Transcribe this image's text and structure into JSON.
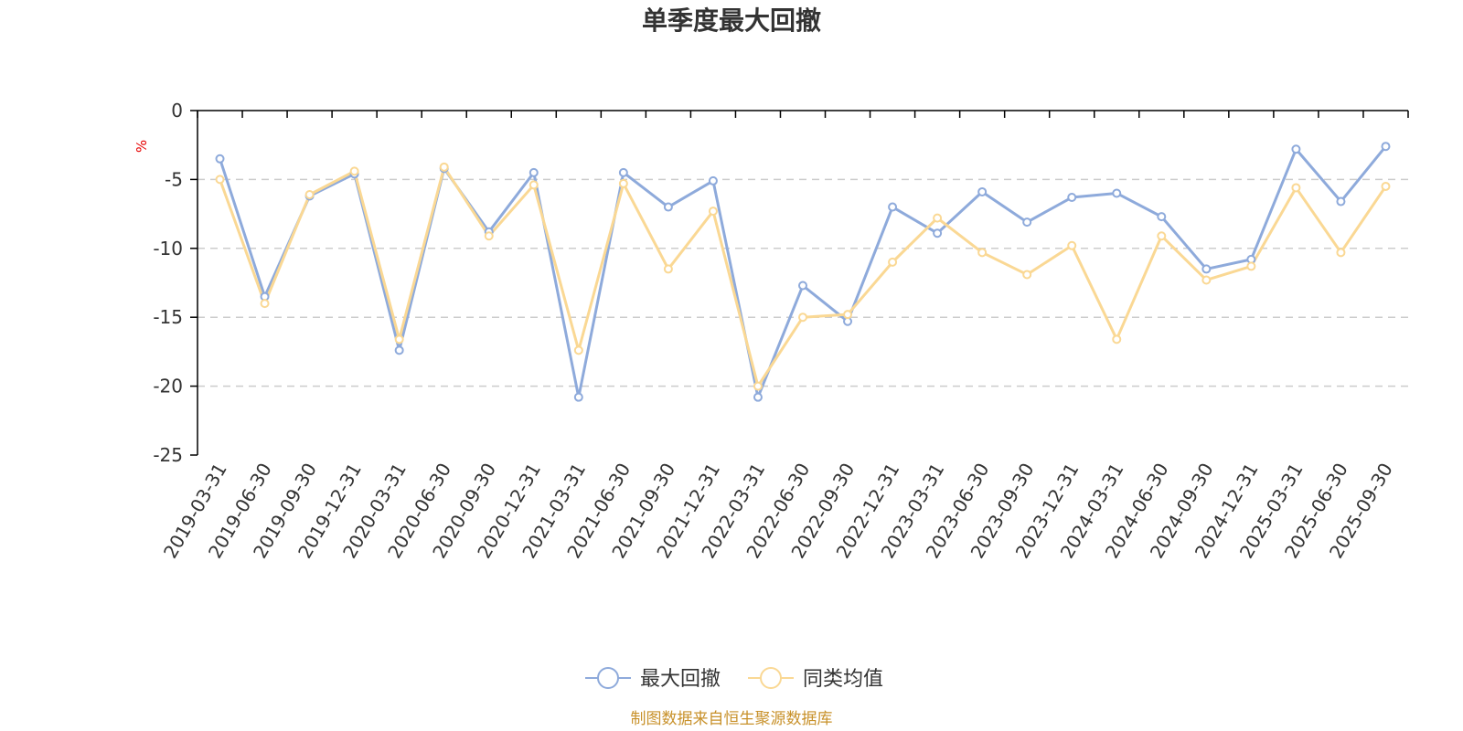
{
  "chart_data": {
    "type": "line",
    "title": "单季度最大回撤",
    "unit_label": "%",
    "footer": "制图数据来自恒生聚源数据库",
    "ylim": [
      -25,
      0
    ],
    "yticks": [
      "0",
      "-5",
      "-10",
      "-15",
      "-20",
      "-25"
    ],
    "ytick_values": [
      0,
      -5,
      -10,
      -15,
      -20,
      -25
    ],
    "grid": "horizontal-dashed",
    "legend_position": "bottom-center",
    "categories": [
      "2019-03-31",
      "2019-06-30",
      "2019-09-30",
      "2019-12-31",
      "2020-03-31",
      "2020-06-30",
      "2020-09-30",
      "2020-12-31",
      "2021-03-31",
      "2021-06-30",
      "2021-09-30",
      "2021-12-31",
      "2022-03-31",
      "2022-06-30",
      "2022-09-30",
      "2022-12-31",
      "2023-03-31",
      "2023-06-30",
      "2023-09-30",
      "2023-12-31",
      "2024-03-31",
      "2024-06-30",
      "2024-09-30",
      "2024-12-31",
      "2025-03-31",
      "2025-06-30",
      "2025-09-30"
    ],
    "series": [
      {
        "name": "最大回撤",
        "color": "#8eaadb",
        "values": [
          -3.5,
          -13.5,
          -6.2,
          -4.6,
          -17.4,
          -4.2,
          -8.8,
          -4.5,
          -20.8,
          -4.5,
          -7.0,
          -5.1,
          -20.8,
          -12.7,
          -15.3,
          -7.0,
          -8.9,
          -5.9,
          -8.1,
          -6.3,
          -6.0,
          -7.7,
          -11.5,
          -10.8,
          -2.8,
          -6.6,
          -2.6
        ]
      },
      {
        "name": "同类均值",
        "color": "#fad894",
        "values": [
          -5.0,
          -14.0,
          -6.1,
          -4.4,
          -16.6,
          -4.1,
          -9.1,
          -5.4,
          -17.4,
          -5.3,
          -11.5,
          -7.3,
          -20.0,
          -15.0,
          -14.8,
          -11.0,
          -7.8,
          -10.3,
          -11.9,
          -9.8,
          -16.6,
          -9.1,
          -12.3,
          -11.3,
          -5.6,
          -10.3,
          -5.5
        ]
      }
    ]
  }
}
